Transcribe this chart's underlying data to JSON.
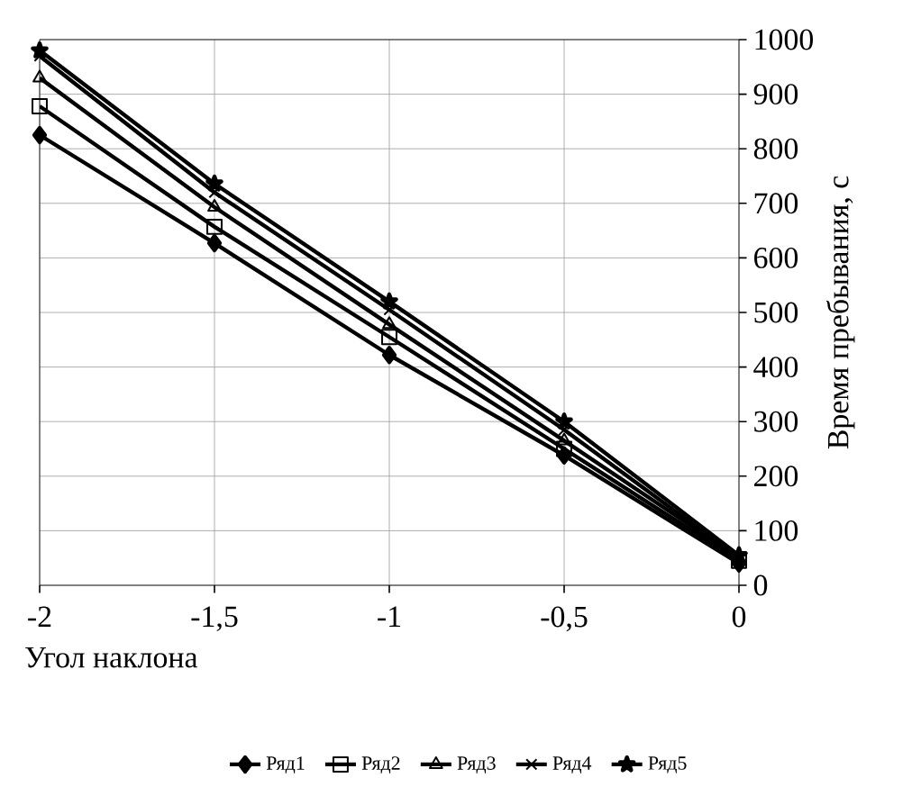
{
  "chart_data": {
    "type": "line",
    "xlabel": "Угол наклона",
    "ylabel": "Время пребывания, с",
    "x": [
      -2,
      -1.5,
      -1,
      -0.5,
      0
    ],
    "series": [
      {
        "name": "Ряд1",
        "color": "#000000",
        "marker": "diamond",
        "values": [
          825,
          627,
          422,
          238,
          40
        ]
      },
      {
        "name": "Ряд2",
        "color": "#000000",
        "marker": "square",
        "values": [
          878,
          657,
          455,
          250,
          45
        ]
      },
      {
        "name": "Ряд3",
        "color": "#000000",
        "marker": "triangle",
        "values": [
          930,
          693,
          478,
          265,
          50
        ]
      },
      {
        "name": "Ряд4",
        "color": "#000000",
        "marker": "cross",
        "values": [
          970,
          720,
          505,
          285,
          50
        ]
      },
      {
        "name": "Ряд5",
        "color": "#000000",
        "marker": "star",
        "values": [
          980,
          736,
          520,
          300,
          55
        ]
      }
    ],
    "xlim": [
      -2,
      0
    ],
    "ylim": [
      0,
      1000
    ],
    "xticks": [
      -2,
      {
        "value": -1.5,
        "label": "-1,5"
      },
      -1,
      {
        "value": -0.5,
        "label": "-0,5"
      },
      0
    ],
    "yticks": [
      0,
      100,
      200,
      300,
      400,
      500,
      600,
      700,
      800,
      900,
      1000
    ],
    "grid": true,
    "legend": "bottom",
    "line_style": "solid"
  }
}
